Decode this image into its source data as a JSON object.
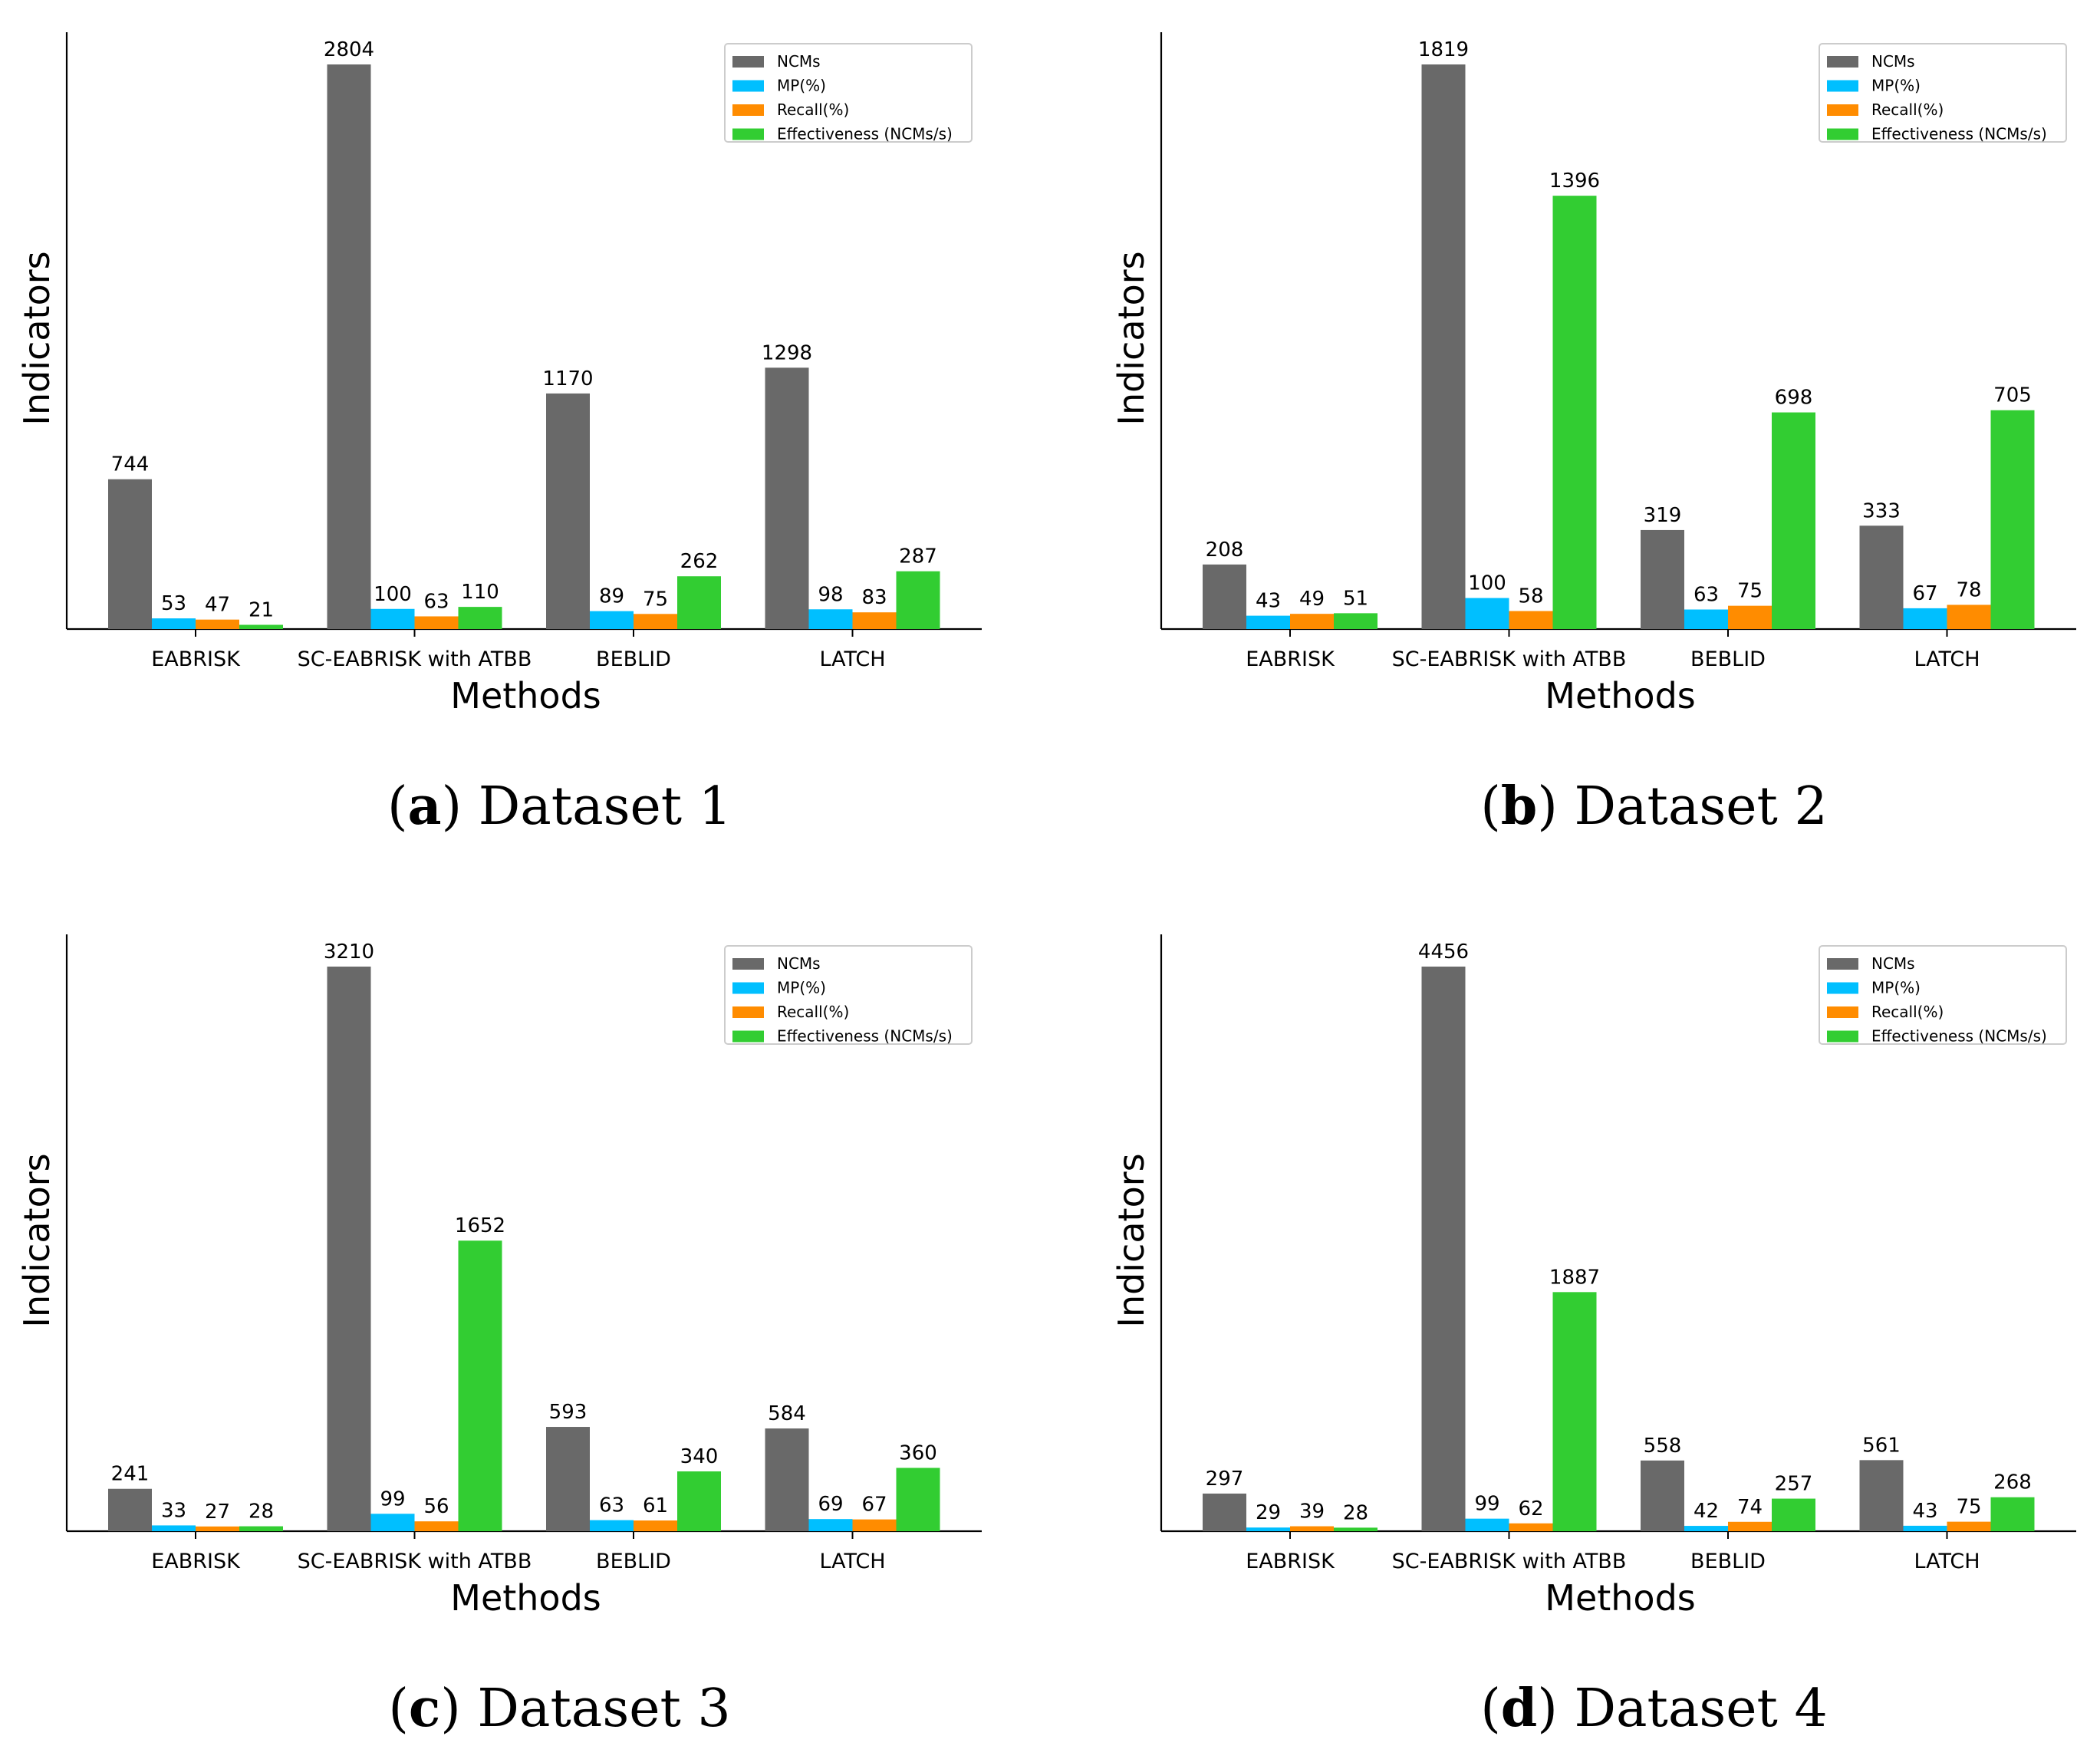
{
  "figure": {
    "panels": [
      {
        "letter": "a",
        "caption": "Dataset 1"
      },
      {
        "letter": "b",
        "caption": "Dataset 2"
      },
      {
        "letter": "c",
        "caption": "Dataset 3"
      },
      {
        "letter": "d",
        "caption": "Dataset 4"
      }
    ]
  },
  "chart_data": [
    {
      "type": "bar",
      "title": "(a) Dataset 1",
      "xlabel": "Methods",
      "ylabel": "Indicators",
      "categories": [
        "EABRISK",
        "SC-EABRISK with ATBB",
        "BEBLID",
        "LATCH"
      ],
      "series": [
        {
          "name": "NCMs",
          "color": "#696969",
          "values": [
            744,
            2804,
            1170,
            1298
          ]
        },
        {
          "name": "MP(%)",
          "color": "#00bfff",
          "values": [
            53,
            100,
            89,
            98
          ]
        },
        {
          "name": "Recall(%)",
          "color": "#ff8c00",
          "values": [
            47,
            63,
            75,
            83
          ]
        },
        {
          "name": "Effectiveness (NCMs/s)",
          "color": "#32cd32",
          "values": [
            21,
            110,
            262,
            287
          ]
        }
      ],
      "ylim": [
        0,
        2804
      ],
      "legend": "top-right",
      "grid": false
    },
    {
      "type": "bar",
      "title": "(b) Dataset 2",
      "xlabel": "Methods",
      "ylabel": "Indicators",
      "categories": [
        "EABRISK",
        "SC-EABRISK with ATBB",
        "BEBLID",
        "LATCH"
      ],
      "series": [
        {
          "name": "NCMs",
          "color": "#696969",
          "values": [
            208,
            1819,
            319,
            333
          ]
        },
        {
          "name": "MP(%)",
          "color": "#00bfff",
          "values": [
            43,
            100,
            63,
            67
          ]
        },
        {
          "name": "Recall(%)",
          "color": "#ff8c00",
          "values": [
            49,
            58,
            75,
            78
          ]
        },
        {
          "name": "Effectiveness (NCMs/s)",
          "color": "#32cd32",
          "values": [
            51,
            1396,
            698,
            705
          ]
        }
      ],
      "ylim": [
        0,
        1819
      ],
      "legend": "top-right",
      "grid": false
    },
    {
      "type": "bar",
      "title": "(c) Dataset 3",
      "xlabel": "Methods",
      "ylabel": "Indicators",
      "categories": [
        "EABRISK",
        "SC-EABRISK with ATBB",
        "BEBLID",
        "LATCH"
      ],
      "series": [
        {
          "name": "NCMs",
          "color": "#696969",
          "values": [
            241,
            3210,
            593,
            584
          ]
        },
        {
          "name": "MP(%)",
          "color": "#00bfff",
          "values": [
            33,
            99,
            63,
            69
          ]
        },
        {
          "name": "Recall(%)",
          "color": "#ff8c00",
          "values": [
            27,
            56,
            61,
            67
          ]
        },
        {
          "name": "Effectiveness (NCMs/s)",
          "color": "#32cd32",
          "values": [
            28,
            1652,
            340,
            360
          ]
        }
      ],
      "ylim": [
        0,
        3210
      ],
      "legend": "top-right",
      "grid": false
    },
    {
      "type": "bar",
      "title": "(d) Dataset 4",
      "xlabel": "Methods",
      "ylabel": "Indicators",
      "categories": [
        "EABRISK",
        "SC-EABRISK with ATBB",
        "BEBLID",
        "LATCH"
      ],
      "series": [
        {
          "name": "NCMs",
          "color": "#696969",
          "values": [
            297,
            4456,
            558,
            561
          ]
        },
        {
          "name": "MP(%)",
          "color": "#00bfff",
          "values": [
            29,
            99,
            42,
            43
          ]
        },
        {
          "name": "Recall(%)",
          "color": "#ff8c00",
          "values": [
            39,
            62,
            74,
            75
          ]
        },
        {
          "name": "Effectiveness (NCMs/s)",
          "color": "#32cd32",
          "values": [
            28,
            1887,
            257,
            268
          ]
        }
      ],
      "ylim": [
        0,
        4456
      ],
      "legend": "top-right",
      "grid": false
    }
  ]
}
